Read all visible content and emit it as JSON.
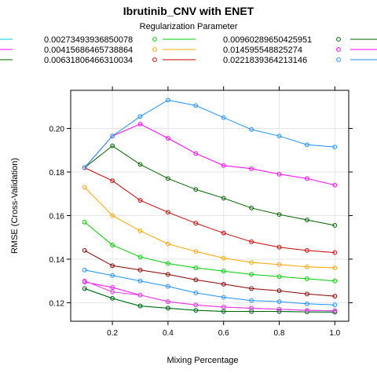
{
  "chart_data": {
    "type": "line",
    "title": "Ibrutinib_CNV with ENET",
    "legend_title": "Regularization Parameter",
    "xlabel": "Mixing Percentage",
    "ylabel": "RMSE (Cross-Validation)",
    "x": [
      0.1,
      0.2,
      0.3,
      0.4,
      0.5,
      0.6,
      0.7,
      0.8,
      0.9,
      1.0
    ],
    "xlim": [
      0.05,
      1.05
    ],
    "ylim": [
      0.1115,
      0.2175
    ],
    "xticks": [
      0.2,
      0.4,
      0.6,
      0.8,
      1.0
    ],
    "xtick_labels": [
      "0.2",
      "0.4",
      "0.6",
      "0.8",
      "1.0"
    ],
    "yticks": [
      0.12,
      0.14,
      0.16,
      0.18,
      0.2
    ],
    "ytick_labels": [
      "0.12",
      "0.14",
      "0.16",
      "0.18",
      "0.20"
    ],
    "grid": true,
    "legend_position": "top",
    "series": [
      {
        "name": "0.00273493936850078",
        "color": "#00CED1",
        "values": [
          0.1265,
          0.122,
          0.1185,
          0.1175,
          0.1165,
          0.116,
          0.116,
          0.116,
          0.1158,
          0.1157
        ]
      },
      {
        "name": "0.00415686465738864",
        "color": "#FF00FF",
        "values": [
          0.1295,
          0.127,
          0.1235,
          0.1205,
          0.119,
          0.118,
          0.1175,
          0.117,
          0.1165,
          0.1163
        ]
      },
      {
        "name": "0.00631806466310034",
        "color": "#006400",
        "values": [
          0.1265,
          0.122,
          0.1185,
          0.1175,
          0.1165,
          0.116,
          0.116,
          0.116,
          0.1158,
          0.1157
        ]
      },
      {
        "name": "0.00960289650425951",
        "color": "#8B0000",
        "values": [
          0.144,
          0.137,
          0.135,
          0.133,
          0.1305,
          0.1285,
          0.1265,
          0.1255,
          0.124,
          0.123
        ]
      },
      {
        "name": "0.014595548825274",
        "color": "#1E90FF",
        "values": [
          0.135,
          0.1325,
          0.13,
          0.1275,
          0.1245,
          0.1225,
          0.121,
          0.1205,
          0.1195,
          0.119
        ]
      },
      {
        "name": "0.0221839364213146",
        "color": "#E040E0",
        "values": [
          0.13,
          0.125,
          0.1235,
          0.1205,
          0.119,
          0.118,
          0.1175,
          0.117,
          0.1165,
          0.1163
        ]
      },
      {
        "name": "",
        "color": "#00CC00",
        "values": [
          0.157,
          0.1465,
          0.141,
          0.138,
          0.136,
          0.1345,
          0.133,
          0.132,
          0.131,
          0.13
        ]
      },
      {
        "name": "",
        "color": "#FFA500",
        "values": [
          0.173,
          0.16,
          0.153,
          0.147,
          0.1435,
          0.1405,
          0.1385,
          0.1375,
          0.1365,
          0.136
        ]
      },
      {
        "name": "",
        "color": "#CC0000",
        "values": [
          0.182,
          0.176,
          0.167,
          0.1615,
          0.1565,
          0.152,
          0.148,
          0.1455,
          0.144,
          0.143
        ]
      },
      {
        "name": "",
        "color": "#006400",
        "values": [
          0.182,
          0.192,
          0.1835,
          0.177,
          0.172,
          0.168,
          0.1635,
          0.1605,
          0.158,
          0.1555
        ]
      },
      {
        "name": "",
        "color": "#FF00FF",
        "values": [
          0.182,
          0.1965,
          0.202,
          0.1955,
          0.1885,
          0.183,
          0.1815,
          0.179,
          0.177,
          0.174
        ]
      },
      {
        "name": "",
        "color": "#1E90FF",
        "values": [
          0.182,
          0.1965,
          0.2055,
          0.213,
          0.2105,
          0.205,
          0.1995,
          0.1965,
          0.1925,
          0.1915
        ]
      }
    ]
  }
}
